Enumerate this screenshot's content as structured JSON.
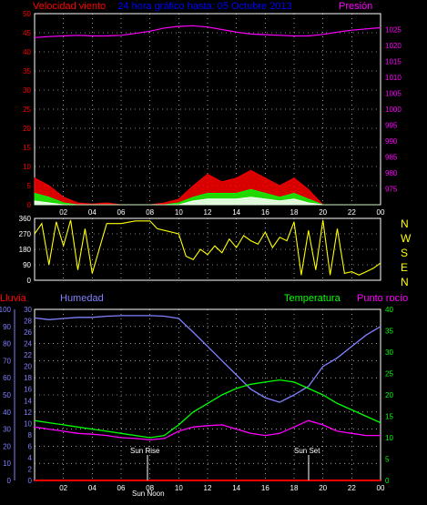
{
  "colors": {
    "background": "#000000",
    "frame": "#ffffff",
    "grid": "#ffffff",
    "wind_axis": "#ff0000",
    "pressure_axis": "#ff00ff",
    "title": "#0000ff",
    "direction_line": "#ffff00",
    "rain": "#ff0000",
    "humidity": "#8080ff",
    "temperature": "#00ff00",
    "dewpoint": "#ff00ff",
    "gust": "#ff0000",
    "wind_avg": "#00ff00",
    "wind_min": "#ffffff",
    "pressure": "#ff00ff"
  },
  "header": {
    "left": "Velocidad viento",
    "center": "24 hora gráfico hasta: 05 Octubre 2013",
    "right": "Presión"
  },
  "bottom_header": {
    "rain": "Lluvia",
    "humidity": "Humedad",
    "temperature": "Temperatura",
    "dewpoint": "Punto rocío"
  },
  "direction_letters": [
    "N",
    "W",
    "S",
    "E",
    "N"
  ],
  "sun": {
    "rise_label": "Sun Rise",
    "set_label": "Sun Set",
    "noon_label": "Sun Noon"
  },
  "x_ticks": [
    "02",
    "04",
    "06",
    "08",
    "10",
    "12",
    "14",
    "16",
    "18",
    "20",
    "22",
    "00"
  ],
  "chart_data": [
    {
      "type": "area",
      "name": "wind_and_pressure",
      "x": [
        0,
        1,
        2,
        3,
        4,
        5,
        6,
        7,
        8,
        9,
        10,
        11,
        12,
        13,
        14,
        15,
        16,
        17,
        18,
        19,
        20,
        21,
        22,
        23,
        24
      ],
      "wind_ylim": [
        0,
        50
      ],
      "wind_ticks": [
        0,
        5,
        10,
        15,
        20,
        25,
        30,
        35,
        40,
        45,
        50
      ],
      "pressure_ylim": [
        970,
        1030
      ],
      "pressure_ticks": [
        975,
        980,
        985,
        990,
        995,
        1000,
        1005,
        1010,
        1015,
        1020,
        1025
      ],
      "series": [
        {
          "key": "gust",
          "values": [
            7,
            5,
            2,
            0.5,
            0.2,
            0.5,
            0,
            0,
            0,
            0.5,
            1.5,
            5,
            8,
            6,
            7,
            9,
            7,
            5,
            7,
            4,
            0,
            0,
            0,
            0,
            0
          ]
        },
        {
          "key": "wind_avg",
          "values": [
            3,
            2,
            0.5,
            0,
            0,
            0,
            0,
            0,
            0,
            0,
            0.5,
            2,
            3,
            3,
            3,
            4,
            3,
            2,
            3,
            1.5,
            0,
            0,
            0,
            0,
            0
          ]
        },
        {
          "key": "wind_min",
          "values": [
            1,
            0.5,
            0,
            0,
            0,
            0,
            0,
            0,
            0,
            0,
            0,
            1,
            1.5,
            1.5,
            1.5,
            2,
            1.5,
            1,
            1.5,
            0.5,
            0,
            0,
            0,
            0,
            0
          ]
        },
        {
          "key": "pressure",
          "values": [
            1022.5,
            1022.8,
            1023,
            1023.2,
            1023,
            1023,
            1023.2,
            1023.8,
            1024.5,
            1025.5,
            1026,
            1026.2,
            1025.8,
            1025,
            1024.2,
            1023.6,
            1023.4,
            1023.2,
            1023,
            1023,
            1023.5,
            1024.2,
            1024.8,
            1025.2,
            1025.6
          ]
        }
      ]
    },
    {
      "type": "line",
      "name": "wind_direction",
      "ylim": [
        0,
        360
      ],
      "y_ticks": [
        0,
        90,
        180,
        270,
        360
      ],
      "x": [
        0,
        0.5,
        1,
        1.5,
        2,
        2.5,
        3,
        3.5,
        4,
        5,
        6,
        7,
        8,
        8.5,
        9,
        10,
        10.5,
        11,
        11.5,
        12,
        12.5,
        13,
        13.5,
        14,
        14.5,
        15,
        15.5,
        16,
        16.5,
        17,
        17.5,
        18,
        18.5,
        19,
        19.5,
        20,
        20.5,
        21,
        21.5,
        22,
        22.5,
        23,
        23.5,
        24
      ],
      "values": [
        270,
        330,
        90,
        340,
        200,
        350,
        60,
        300,
        40,
        330,
        330,
        345,
        345,
        300,
        290,
        270,
        140,
        120,
        180,
        150,
        200,
        160,
        240,
        190,
        260,
        230,
        210,
        280,
        190,
        250,
        230,
        340,
        30,
        290,
        60,
        350,
        30,
        300,
        40,
        50,
        30,
        50,
        70,
        100
      ]
    },
    {
      "type": "line",
      "name": "temp_hum_rain",
      "x": [
        0,
        1,
        2,
        3,
        4,
        5,
        6,
        7,
        8,
        9,
        10,
        11,
        12,
        13,
        14,
        15,
        16,
        17,
        18,
        19,
        20,
        21,
        22,
        23,
        24
      ],
      "rain_ylim": [
        0,
        100
      ],
      "rain_ticks": [
        0,
        10,
        20,
        30,
        40,
        50,
        60,
        70,
        80,
        90,
        100
      ],
      "humidity_ylim": [
        0,
        30
      ],
      "humidity_ticks": [
        0,
        2,
        4,
        6,
        8,
        10,
        12,
        14,
        16,
        18,
        20,
        22,
        24,
        26,
        28,
        30
      ],
      "temperature_ylim": [
        0,
        40
      ],
      "temperature_ticks": [
        0,
        5,
        10,
        15,
        20,
        25,
        30,
        35,
        40
      ],
      "series": [
        {
          "key": "rain",
          "axis": "rain",
          "values": [
            0,
            0,
            0,
            0,
            0,
            0,
            0,
            0,
            0,
            0,
            0,
            0,
            0,
            0,
            0,
            0,
            0,
            0,
            0,
            0,
            0,
            0,
            0,
            0,
            0
          ]
        },
        {
          "key": "humidity",
          "axis": "humidity",
          "values": [
            28.5,
            28.2,
            28.4,
            28.6,
            28.6,
            28.8,
            28.9,
            28.9,
            28.9,
            28.8,
            28.4,
            26,
            23.5,
            21,
            18.5,
            16,
            14.5,
            13.7,
            15,
            16.5,
            20,
            21.5,
            23.5,
            25.5,
            27
          ]
        },
        {
          "key": "temperature",
          "axis": "temperature",
          "values": [
            14,
            13.5,
            13,
            12.5,
            12,
            11.5,
            11,
            10.5,
            10,
            10.5,
            13,
            16,
            18,
            20,
            21.5,
            22.5,
            23,
            23.5,
            23,
            21.5,
            20,
            18,
            16.5,
            15,
            13.5
          ]
        },
        {
          "key": "dewpoint",
          "axis": "temperature",
          "values": [
            12.5,
            12,
            11.5,
            11,
            10.8,
            10.5,
            10,
            9.8,
            9.5,
            9.8,
            11.5,
            12.5,
            12.8,
            13,
            12,
            11,
            10.5,
            11,
            12.5,
            14,
            13,
            11.5,
            11,
            10.5,
            10.5
          ]
        }
      ]
    }
  ]
}
